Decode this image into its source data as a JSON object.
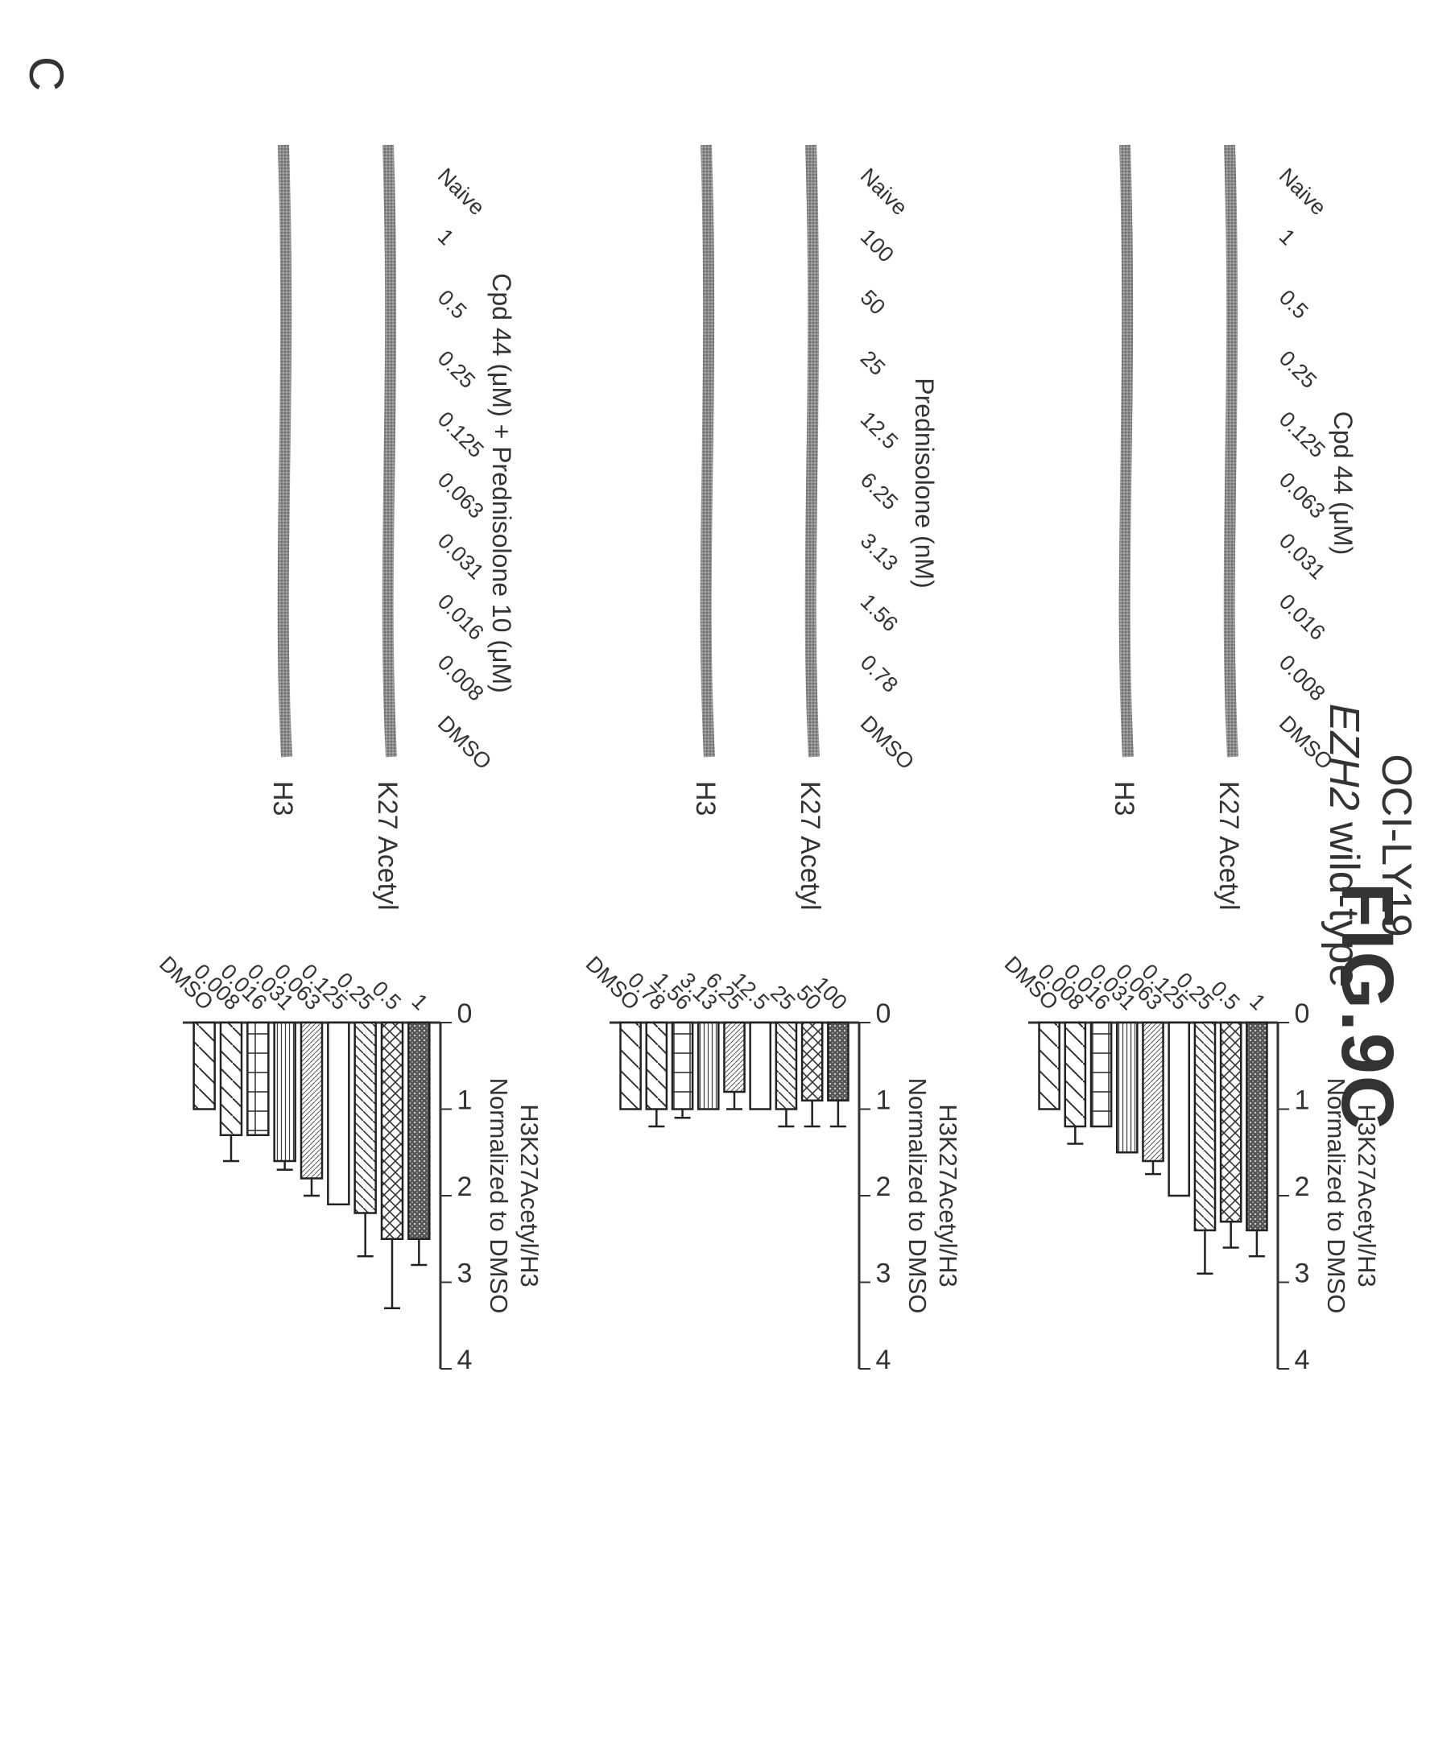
{
  "figure": {
    "panel_letter": "C",
    "title": "OCI-LY19",
    "subtitle_gene": "EZH2",
    "subtitle_rest": " wild-type",
    "fig_label": "FIG.9C"
  },
  "blots": [
    {
      "condition": "Cpd 44 (μM)",
      "lanes": [
        "Naive",
        "1",
        "0.5",
        "0.25",
        "0.125",
        "0.063",
        "0.031",
        "0.016",
        "0.008",
        "DMSO"
      ],
      "bands": [
        "K27 Acetyl",
        "H3"
      ]
    },
    {
      "condition": "Prednisolone (nM)",
      "lanes": [
        "Naive",
        "100",
        "50",
        "25",
        "12.5",
        "6.25",
        "3.13",
        "1.56",
        "0.78",
        "DMSO"
      ],
      "bands": [
        "K27 Acetyl",
        "H3"
      ]
    },
    {
      "condition": "Cpd 44 (μM) + Prednisolone 10 (μM)",
      "lanes": [
        "Naive",
        "1",
        "0.5",
        "0.25",
        "0.125",
        "0.063",
        "0.031",
        "0.016",
        "0.008",
        "DMSO"
      ],
      "bands": [
        "K27 Acetyl",
        "H3"
      ]
    }
  ],
  "chart_data": [
    {
      "type": "bar",
      "ylabel_line1": "H3K27Acetyl/H3",
      "ylabel_line2": "Normalized to DMSO",
      "ylim": [
        0,
        4
      ],
      "yticks": [
        "0",
        "1",
        "2",
        "3",
        "4"
      ],
      "categories": [
        "1",
        "0.5",
        "0.25",
        "0.125",
        "0.063",
        "0.031",
        "0.016",
        "0.008",
        "DMSO"
      ],
      "values": [
        2.4,
        2.3,
        2.4,
        2.0,
        1.6,
        1.5,
        1.2,
        1.2,
        1.0
      ],
      "errors": [
        0.3,
        0.3,
        0.5,
        0.0,
        0.15,
        0.0,
        0.0,
        0.2,
        0.0
      ],
      "patterns": [
        "dense",
        "crosshatch",
        "diag",
        "blank",
        "finediag",
        "hlines",
        "vlines",
        "diag2",
        "bigdiag"
      ]
    },
    {
      "type": "bar",
      "ylabel_line1": "H3K27Acetyl/H3",
      "ylabel_line2": "Normalized to DMSO",
      "ylim": [
        0,
        4
      ],
      "yticks": [
        "0",
        "1",
        "2",
        "3",
        "4"
      ],
      "categories": [
        "100",
        "50",
        "25",
        "12.5",
        "6.25",
        "3.13",
        "1.56",
        "0.78",
        "DMSO"
      ],
      "values": [
        0.9,
        0.9,
        1.0,
        1.0,
        0.8,
        1.0,
        1.0,
        1.0,
        1.0
      ],
      "errors": [
        0.3,
        0.3,
        0.2,
        0.0,
        0.2,
        0.0,
        0.1,
        0.2,
        0.0
      ],
      "patterns": [
        "dense",
        "crosshatch",
        "diag",
        "blank",
        "finediag",
        "hlines",
        "vlines",
        "diag2",
        "bigdiag"
      ]
    },
    {
      "type": "bar",
      "ylabel_line1": "H3K27Acetyl/H3",
      "ylabel_line2": "Normalized to DMSO",
      "ylim": [
        0,
        4
      ],
      "yticks": [
        "0",
        "1",
        "2",
        "3",
        "4"
      ],
      "categories": [
        "1",
        "0.5",
        "0.25",
        "0.125",
        "0.063",
        "0.031",
        "0.016",
        "0.008",
        "DMSO"
      ],
      "values": [
        2.5,
        2.5,
        2.2,
        2.1,
        1.8,
        1.6,
        1.3,
        1.3,
        1.0
      ],
      "errors": [
        0.3,
        0.8,
        0.5,
        0.0,
        0.2,
        0.1,
        0.0,
        0.3,
        0.0
      ],
      "patterns": [
        "dense",
        "crosshatch",
        "diag",
        "blank",
        "finediag",
        "hlines",
        "vlines",
        "diag2",
        "bigdiag"
      ]
    }
  ]
}
